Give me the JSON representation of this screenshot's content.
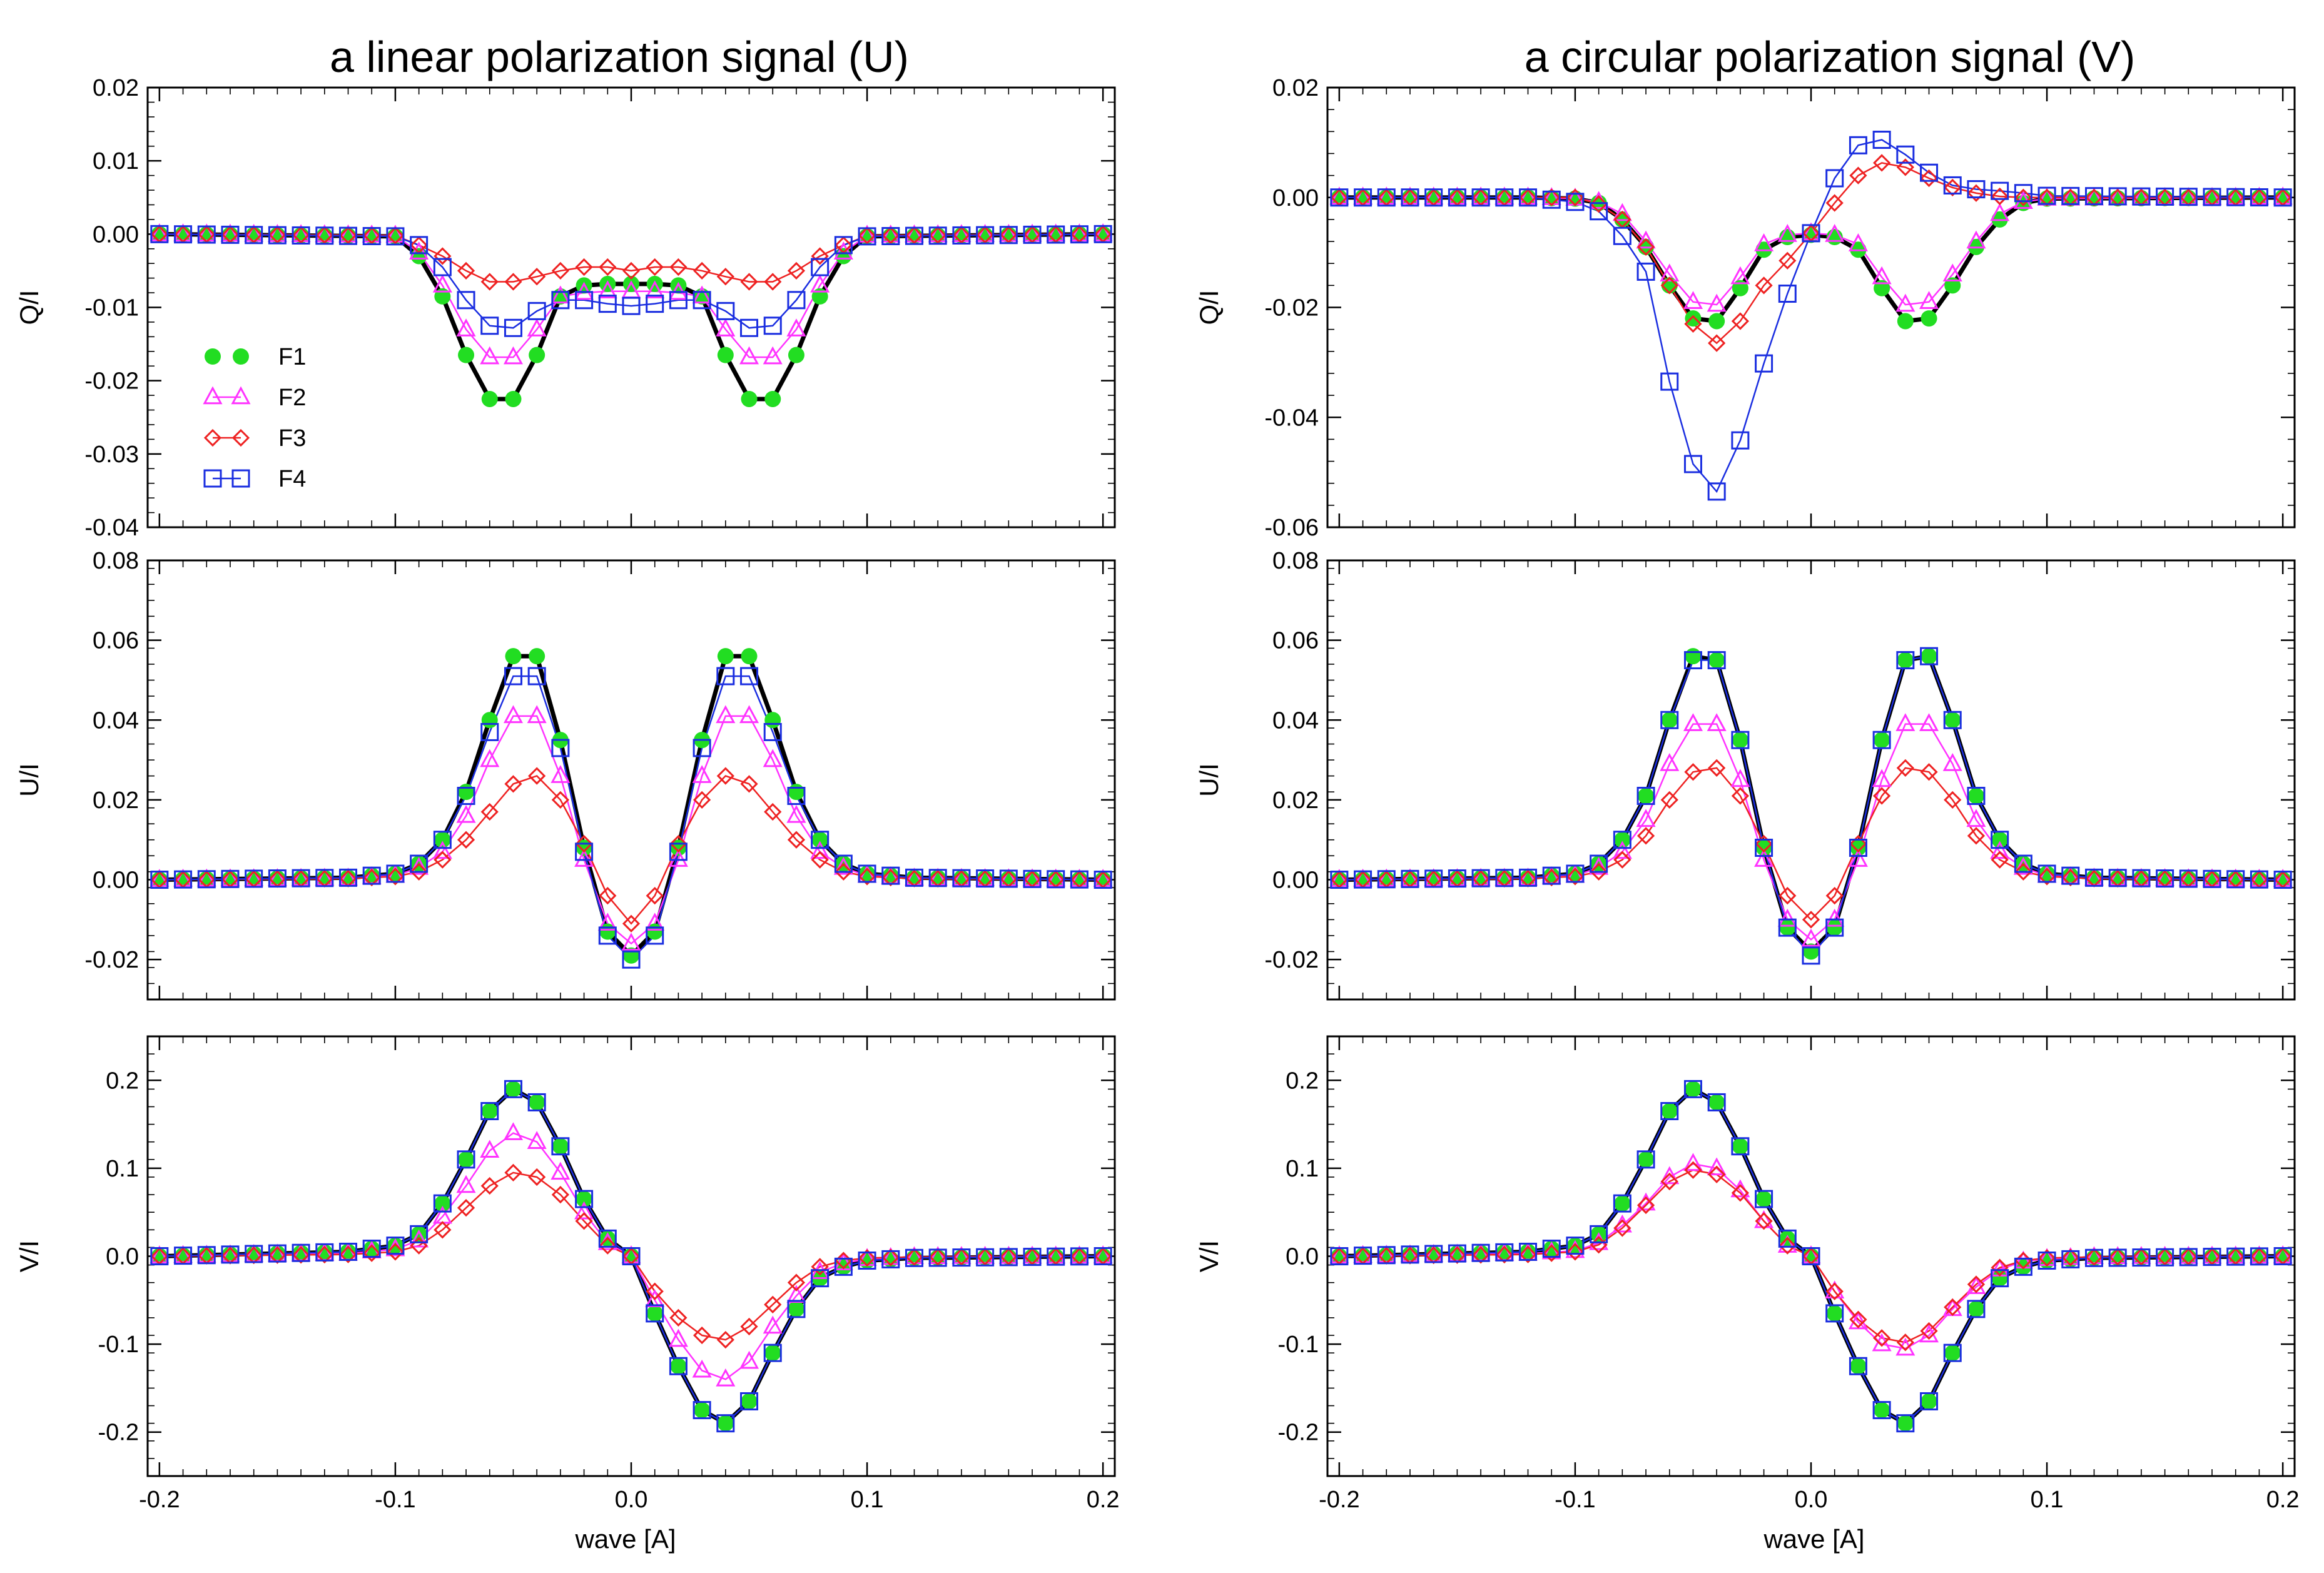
{
  "figure": {
    "left_title": "a linear polarization signal (U)",
    "right_title": "a circular polarization signal (V)",
    "xlabel": "wave [A]"
  },
  "legend": [
    {
      "name": "F1",
      "color": "#22dd22",
      "marker": "filled-circle"
    },
    {
      "name": "F2",
      "color": "#ff33ff",
      "marker": "triangle"
    },
    {
      "name": "F3",
      "color": "#ee2222",
      "marker": "diamond"
    },
    {
      "name": "F4",
      "color": "#1a2ee0",
      "marker": "square"
    }
  ],
  "chart_data": [
    {
      "type": "line",
      "id": "left-q",
      "column": "left",
      "row": 0,
      "ylabel": "Q/I",
      "ylim": [
        -0.04,
        0.02
      ],
      "yticks": [
        -0.04,
        -0.03,
        -0.02,
        -0.01,
        0.0,
        0.01,
        0.02
      ],
      "ytick_labels": [
        "-0.04",
        "-0.03",
        "-0.02",
        "-0.01",
        "0.00",
        "0.01",
        "0.02"
      ],
      "xlim": [
        -0.205,
        0.205
      ],
      "xticks": [
        -0.2,
        -0.1,
        0.0,
        0.1,
        0.2
      ],
      "xtick_labels": [],
      "legend_position": "left",
      "x": [
        -0.2,
        -0.1,
        -0.09,
        -0.08,
        -0.07,
        -0.06,
        -0.05,
        -0.04,
        -0.03,
        -0.02,
        -0.01,
        0.0,
        0.01,
        0.02,
        0.03,
        0.04,
        0.05,
        0.06,
        0.07,
        0.08,
        0.09,
        0.1,
        0.2
      ],
      "series": [
        {
          "name": "F1",
          "values": [
            0,
            -0.0003,
            -0.003,
            -0.0085,
            -0.0165,
            -0.0225,
            -0.0225,
            -0.0165,
            -0.0085,
            -0.007,
            -0.0068,
            -0.0068,
            -0.0068,
            -0.007,
            -0.0085,
            -0.0165,
            -0.0225,
            -0.0225,
            -0.0165,
            -0.0085,
            -0.003,
            -0.0003,
            0
          ]
        },
        {
          "name": "F2",
          "values": [
            0,
            -0.0002,
            -0.0025,
            -0.007,
            -0.013,
            -0.0168,
            -0.0168,
            -0.013,
            -0.0085,
            -0.008,
            -0.0078,
            -0.0078,
            -0.0078,
            -0.008,
            -0.0085,
            -0.013,
            -0.0168,
            -0.0168,
            -0.013,
            -0.007,
            -0.0025,
            -0.0002,
            0
          ]
        },
        {
          "name": "F3",
          "values": [
            0,
            -0.0002,
            -0.0015,
            -0.003,
            -0.005,
            -0.0065,
            -0.0065,
            -0.0058,
            -0.005,
            -0.0045,
            -0.0045,
            -0.005,
            -0.0045,
            -0.0045,
            -0.005,
            -0.0058,
            -0.0065,
            -0.0065,
            -0.005,
            -0.003,
            -0.0015,
            -0.0002,
            0
          ]
        },
        {
          "name": "F4",
          "values": [
            0,
            -0.0003,
            -0.0015,
            -0.0045,
            -0.009,
            -0.0125,
            -0.0128,
            -0.0105,
            -0.009,
            -0.009,
            -0.0095,
            -0.0098,
            -0.0095,
            -0.009,
            -0.009,
            -0.0105,
            -0.0128,
            -0.0125,
            -0.009,
            -0.0045,
            -0.0015,
            -0.0003,
            0
          ]
        }
      ]
    },
    {
      "type": "line",
      "id": "right-q",
      "column": "right",
      "row": 0,
      "ylabel": "Q/I",
      "ylim": [
        -0.06,
        0.02
      ],
      "yticks": [
        -0.06,
        -0.04,
        -0.02,
        0.0,
        0.02
      ],
      "ytick_labels": [
        "-0.06",
        "-0.04",
        "-0.02",
        "0.00",
        "0.02"
      ],
      "xlim": [
        -0.205,
        0.205
      ],
      "xticks": [
        -0.2,
        -0.1,
        0.0,
        0.1,
        0.2
      ],
      "xtick_labels": [],
      "legend_position": "none",
      "x": [
        -0.2,
        -0.12,
        -0.1,
        -0.09,
        -0.08,
        -0.07,
        -0.06,
        -0.05,
        -0.04,
        -0.03,
        -0.02,
        -0.01,
        0.0,
        0.01,
        0.02,
        0.03,
        0.04,
        0.05,
        0.06,
        0.07,
        0.08,
        0.09,
        0.1,
        0.2
      ],
      "series": [
        {
          "name": "F1",
          "values": [
            0,
            0,
            -0.0002,
            -0.001,
            -0.004,
            -0.009,
            -0.016,
            -0.022,
            -0.0225,
            -0.0165,
            -0.0095,
            -0.0072,
            -0.0068,
            -0.0072,
            -0.0095,
            -0.0165,
            -0.0225,
            -0.022,
            -0.016,
            -0.009,
            -0.004,
            -0.001,
            -0.0002,
            0
          ]
        },
        {
          "name": "F2",
          "values": [
            0,
            0,
            -0.0002,
            -0.0008,
            -0.003,
            -0.008,
            -0.014,
            -0.019,
            -0.0195,
            -0.0145,
            -0.0085,
            -0.0068,
            -0.0065,
            -0.0068,
            -0.0085,
            -0.0145,
            -0.0195,
            -0.019,
            -0.014,
            -0.008,
            -0.003,
            -0.0008,
            -0.0002,
            0
          ]
        },
        {
          "name": "F3",
          "values": [
            0,
            0,
            0,
            -0.0012,
            -0.004,
            -0.009,
            -0.016,
            -0.023,
            -0.0265,
            -0.0225,
            -0.016,
            -0.0115,
            -0.0065,
            -0.001,
            0.004,
            0.0063,
            0.0055,
            0.0035,
            0.0018,
            0.0008,
            0.0002,
            0,
            0,
            0
          ]
        },
        {
          "name": "F4",
          "values": [
            0,
            0,
            -0.0008,
            -0.0025,
            -0.007,
            -0.0135,
            -0.0335,
            -0.0485,
            -0.0535,
            -0.0442,
            -0.0302,
            -0.0175,
            -0.0065,
            0.0035,
            0.0095,
            0.0105,
            0.0078,
            0.0045,
            0.0022,
            0.0015,
            0.0012,
            0.0008,
            0.0003,
            0
          ]
        }
      ]
    },
    {
      "type": "line",
      "id": "left-u",
      "column": "left",
      "row": 1,
      "ylabel": "U/I",
      "ylim": [
        -0.03,
        0.08
      ],
      "yticks": [
        -0.02,
        0.0,
        0.02,
        0.04,
        0.06,
        0.08
      ],
      "ytick_labels": [
        "-0.02",
        "0.00",
        "0.02",
        "0.04",
        "0.06",
        "0.08"
      ],
      "xlim": [
        -0.205,
        0.205
      ],
      "xticks": [
        -0.2,
        -0.1,
        0.0,
        0.1,
        0.2
      ],
      "xtick_labels": [],
      "legend_position": "none",
      "x": [
        -0.2,
        -0.12,
        -0.1,
        -0.09,
        -0.08,
        -0.07,
        -0.06,
        -0.05,
        -0.04,
        -0.03,
        -0.02,
        -0.01,
        0.0,
        0.01,
        0.02,
        0.03,
        0.04,
        0.05,
        0.06,
        0.07,
        0.08,
        0.09,
        0.1,
        0.12,
        0.2
      ],
      "series": [
        {
          "name": "F1",
          "values": [
            0,
            0.0005,
            0.0015,
            0.004,
            0.01,
            0.022,
            0.04,
            0.056,
            0.056,
            0.035,
            0.008,
            -0.013,
            -0.019,
            -0.013,
            0.008,
            0.035,
            0.056,
            0.056,
            0.04,
            0.022,
            0.01,
            0.004,
            0.0015,
            0.0005,
            0
          ]
        },
        {
          "name": "F2",
          "values": [
            0,
            0.0003,
            0.001,
            0.003,
            0.007,
            0.016,
            0.03,
            0.041,
            0.041,
            0.026,
            0.005,
            -0.011,
            -0.016,
            -0.011,
            0.005,
            0.026,
            0.041,
            0.041,
            0.03,
            0.016,
            0.007,
            0.003,
            0.001,
            0.0003,
            0
          ]
        },
        {
          "name": "F3",
          "values": [
            0,
            0.0003,
            0.0008,
            0.002,
            0.005,
            0.01,
            0.017,
            0.024,
            0.026,
            0.02,
            0.009,
            -0.004,
            -0.011,
            -0.004,
            0.009,
            0.02,
            0.026,
            0.024,
            0.017,
            0.01,
            0.005,
            0.002,
            0.0008,
            0.0003,
            0
          ]
        },
        {
          "name": "F4",
          "values": [
            0,
            0.0005,
            0.0015,
            0.004,
            0.01,
            0.021,
            0.037,
            0.051,
            0.051,
            0.033,
            0.007,
            -0.014,
            -0.02,
            -0.014,
            0.007,
            0.033,
            0.051,
            0.051,
            0.037,
            0.021,
            0.01,
            0.004,
            0.0015,
            0.0005,
            0
          ]
        }
      ]
    },
    {
      "type": "line",
      "id": "right-u",
      "column": "right",
      "row": 1,
      "ylabel": "U/I",
      "ylim": [
        -0.03,
        0.08
      ],
      "yticks": [
        -0.02,
        0.0,
        0.02,
        0.04,
        0.06,
        0.08
      ],
      "ytick_labels": [
        "-0.02",
        "0.00",
        "0.02",
        "0.04",
        "0.06",
        "0.08"
      ],
      "xlim": [
        -0.205,
        0.205
      ],
      "xticks": [
        -0.2,
        -0.1,
        0.0,
        0.1,
        0.2
      ],
      "xtick_labels": [],
      "legend_position": "none",
      "x": [
        -0.2,
        -0.12,
        -0.1,
        -0.09,
        -0.08,
        -0.07,
        -0.06,
        -0.05,
        -0.04,
        -0.03,
        -0.02,
        -0.01,
        0.0,
        0.01,
        0.02,
        0.03,
        0.04,
        0.05,
        0.06,
        0.07,
        0.08,
        0.09,
        0.1,
        0.12,
        0.2
      ],
      "series": [
        {
          "name": "F1",
          "values": [
            0,
            0.0005,
            0.0015,
            0.004,
            0.01,
            0.021,
            0.04,
            0.056,
            0.055,
            0.035,
            0.008,
            -0.012,
            -0.018,
            -0.012,
            0.008,
            0.035,
            0.055,
            0.056,
            0.04,
            0.021,
            0.01,
            0.004,
            0.0015,
            0.0005,
            0
          ]
        },
        {
          "name": "F2",
          "values": [
            0,
            0.0003,
            0.001,
            0.003,
            0.007,
            0.015,
            0.029,
            0.039,
            0.039,
            0.025,
            0.005,
            -0.01,
            -0.015,
            -0.01,
            0.005,
            0.025,
            0.039,
            0.039,
            0.029,
            0.015,
            0.007,
            0.003,
            0.001,
            0.0003,
            0
          ]
        },
        {
          "name": "F3",
          "values": [
            0,
            0.0003,
            0.0008,
            0.002,
            0.005,
            0.011,
            0.02,
            0.027,
            0.028,
            0.021,
            0.009,
            -0.004,
            -0.01,
            -0.004,
            0.009,
            0.021,
            0.028,
            0.027,
            0.02,
            0.011,
            0.005,
            0.002,
            0.0008,
            0.0003,
            0
          ]
        },
        {
          "name": "F4",
          "values": [
            0,
            0.0005,
            0.0015,
            0.004,
            0.01,
            0.021,
            0.04,
            0.055,
            0.055,
            0.035,
            0.008,
            -0.012,
            -0.019,
            -0.012,
            0.008,
            0.035,
            0.055,
            0.056,
            0.04,
            0.021,
            0.01,
            0.004,
            0.0015,
            0.0005,
            0
          ]
        }
      ]
    },
    {
      "type": "line",
      "id": "left-v",
      "column": "left",
      "row": 2,
      "ylabel": "V/I",
      "ylim": [
        -0.25,
        0.25
      ],
      "yticks": [
        -0.2,
        -0.1,
        0.0,
        0.1,
        0.2
      ],
      "ytick_labels": [
        "-0.2",
        "-0.1",
        "0.0",
        "0.1",
        "0.2"
      ],
      "xlim": [
        -0.205,
        0.205
      ],
      "xticks": [
        -0.2,
        -0.1,
        0.0,
        0.1,
        0.2
      ],
      "xtick_labels": [
        "-0.2",
        "-0.1",
        "0.0",
        "0.1",
        "0.2"
      ],
      "legend_position": "none",
      "x": [
        -0.2,
        -0.12,
        -0.1,
        -0.09,
        -0.08,
        -0.07,
        -0.06,
        -0.05,
        -0.04,
        -0.03,
        -0.02,
        -0.01,
        0.0,
        0.01,
        0.02,
        0.03,
        0.04,
        0.05,
        0.06,
        0.07,
        0.08,
        0.09,
        0.1,
        0.12,
        0.2
      ],
      "series": [
        {
          "name": "F1",
          "values": [
            0,
            0.005,
            0.012,
            0.025,
            0.06,
            0.11,
            0.165,
            0.19,
            0.175,
            0.125,
            0.065,
            0.02,
            0,
            -0.065,
            -0.125,
            -0.175,
            -0.19,
            -0.165,
            -0.11,
            -0.06,
            -0.025,
            -0.012,
            -0.005,
            -0.002,
            0
          ]
        },
        {
          "name": "F2",
          "values": [
            0,
            0.003,
            0.008,
            0.018,
            0.045,
            0.08,
            0.12,
            0.14,
            0.13,
            0.095,
            0.05,
            0.015,
            0,
            -0.05,
            -0.095,
            -0.13,
            -0.14,
            -0.12,
            -0.08,
            -0.045,
            -0.018,
            -0.008,
            -0.003,
            -0.001,
            0
          ]
        },
        {
          "name": "F3",
          "values": [
            0,
            0.002,
            0.005,
            0.012,
            0.03,
            0.055,
            0.08,
            0.095,
            0.09,
            0.07,
            0.04,
            0.012,
            0,
            -0.04,
            -0.07,
            -0.09,
            -0.095,
            -0.08,
            -0.055,
            -0.03,
            -0.012,
            -0.005,
            -0.002,
            -0.001,
            0
          ]
        },
        {
          "name": "F4",
          "values": [
            0,
            0.005,
            0.012,
            0.025,
            0.06,
            0.11,
            0.165,
            0.19,
            0.175,
            0.125,
            0.065,
            0.02,
            0,
            -0.065,
            -0.125,
            -0.175,
            -0.19,
            -0.165,
            -0.11,
            -0.06,
            -0.025,
            -0.012,
            -0.005,
            -0.002,
            0
          ]
        }
      ]
    },
    {
      "type": "line",
      "id": "right-v",
      "column": "right",
      "row": 2,
      "ylabel": "V/I",
      "ylim": [
        -0.25,
        0.25
      ],
      "yticks": [
        -0.2,
        -0.1,
        0.0,
        0.1,
        0.2
      ],
      "ytick_labels": [
        "-0.2",
        "-0.1",
        "0.0",
        "0.1",
        "0.2"
      ],
      "xlim": [
        -0.205,
        0.205
      ],
      "xticks": [
        -0.2,
        -0.1,
        0.0,
        0.1,
        0.2
      ],
      "xtick_labels": [
        "-0.2",
        "-0.1",
        "0.0",
        "0.1",
        "0.2"
      ],
      "legend_position": "none",
      "x": [
        -0.2,
        -0.12,
        -0.1,
        -0.09,
        -0.08,
        -0.07,
        -0.06,
        -0.05,
        -0.04,
        -0.03,
        -0.02,
        -0.01,
        0.0,
        0.01,
        0.02,
        0.03,
        0.04,
        0.05,
        0.06,
        0.07,
        0.08,
        0.09,
        0.1,
        0.12,
        0.2
      ],
      "series": [
        {
          "name": "F1",
          "values": [
            0,
            0.005,
            0.012,
            0.025,
            0.06,
            0.11,
            0.165,
            0.19,
            0.175,
            0.125,
            0.065,
            0.02,
            0,
            -0.065,
            -0.125,
            -0.175,
            -0.19,
            -0.165,
            -0.11,
            -0.06,
            -0.025,
            -0.012,
            -0.005,
            -0.002,
            0
          ]
        },
        {
          "name": "F2",
          "values": [
            0,
            0.003,
            0.006,
            0.015,
            0.035,
            0.06,
            0.09,
            0.105,
            0.1,
            0.075,
            0.04,
            0.012,
            0,
            -0.04,
            -0.075,
            -0.1,
            -0.105,
            -0.09,
            -0.06,
            -0.035,
            -0.015,
            -0.006,
            -0.003,
            -0.001,
            0
          ]
        },
        {
          "name": "F3",
          "values": [
            0,
            0.002,
            0.005,
            0.013,
            0.032,
            0.058,
            0.085,
            0.098,
            0.093,
            0.072,
            0.04,
            0.012,
            0,
            -0.04,
            -0.072,
            -0.093,
            -0.098,
            -0.085,
            -0.058,
            -0.032,
            -0.013,
            -0.005,
            -0.002,
            -0.001,
            0
          ]
        },
        {
          "name": "F4",
          "values": [
            0,
            0.005,
            0.012,
            0.025,
            0.06,
            0.11,
            0.165,
            0.19,
            0.175,
            0.125,
            0.065,
            0.02,
            0,
            -0.065,
            -0.125,
            -0.175,
            -0.19,
            -0.165,
            -0.11,
            -0.06,
            -0.025,
            -0.012,
            -0.005,
            -0.002,
            0
          ]
        }
      ]
    }
  ]
}
